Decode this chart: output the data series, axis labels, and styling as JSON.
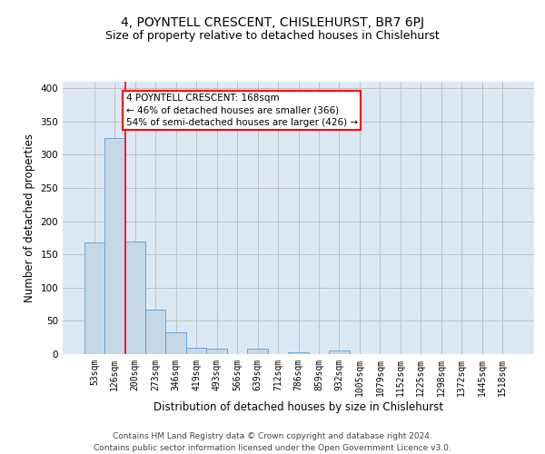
{
  "title": "4, POYNTELL CRESCENT, CHISLEHURST, BR7 6PJ",
  "subtitle": "Size of property relative to detached houses in Chislehurst",
  "xlabel": "Distribution of detached houses by size in Chislehurst",
  "ylabel": "Number of detached properties",
  "footer_line1": "Contains HM Land Registry data © Crown copyright and database right 2024.",
  "footer_line2": "Contains public sector information licensed under the Open Government Licence v3.0.",
  "bar_labels": [
    "53sqm",
    "126sqm",
    "200sqm",
    "273sqm",
    "346sqm",
    "419sqm",
    "493sqm",
    "566sqm",
    "639sqm",
    "712sqm",
    "786sqm",
    "859sqm",
    "932sqm",
    "1005sqm",
    "1079sqm",
    "1152sqm",
    "1225sqm",
    "1298sqm",
    "1372sqm",
    "1445sqm",
    "1518sqm"
  ],
  "bar_values": [
    168,
    325,
    170,
    67,
    33,
    10,
    8,
    0,
    8,
    0,
    3,
    0,
    5,
    0,
    0,
    0,
    0,
    0,
    0,
    0,
    0
  ],
  "bar_color": "#c5d8e8",
  "bar_edge_color": "#5b9bd5",
  "vline_x": 1.5,
  "vline_color": "red",
  "annotation_title": "4 POYNTELL CRESCENT: 168sqm",
  "annotation_line2": "← 46% of detached houses are smaller (366)",
  "annotation_line3": "54% of semi-detached houses are larger (426) →",
  "annotation_box_color": "white",
  "annotation_box_edge": "red",
  "ylim": [
    0,
    410
  ],
  "yticks": [
    0,
    50,
    100,
    150,
    200,
    250,
    300,
    350,
    400
  ],
  "grid_color": "#c0c0c0",
  "bg_color": "#dce9f5",
  "title_fontsize": 10,
  "subtitle_fontsize": 9,
  "axis_label_fontsize": 8.5,
  "tick_fontsize": 7,
  "annotation_fontsize": 7.5,
  "footer_fontsize": 6.5
}
